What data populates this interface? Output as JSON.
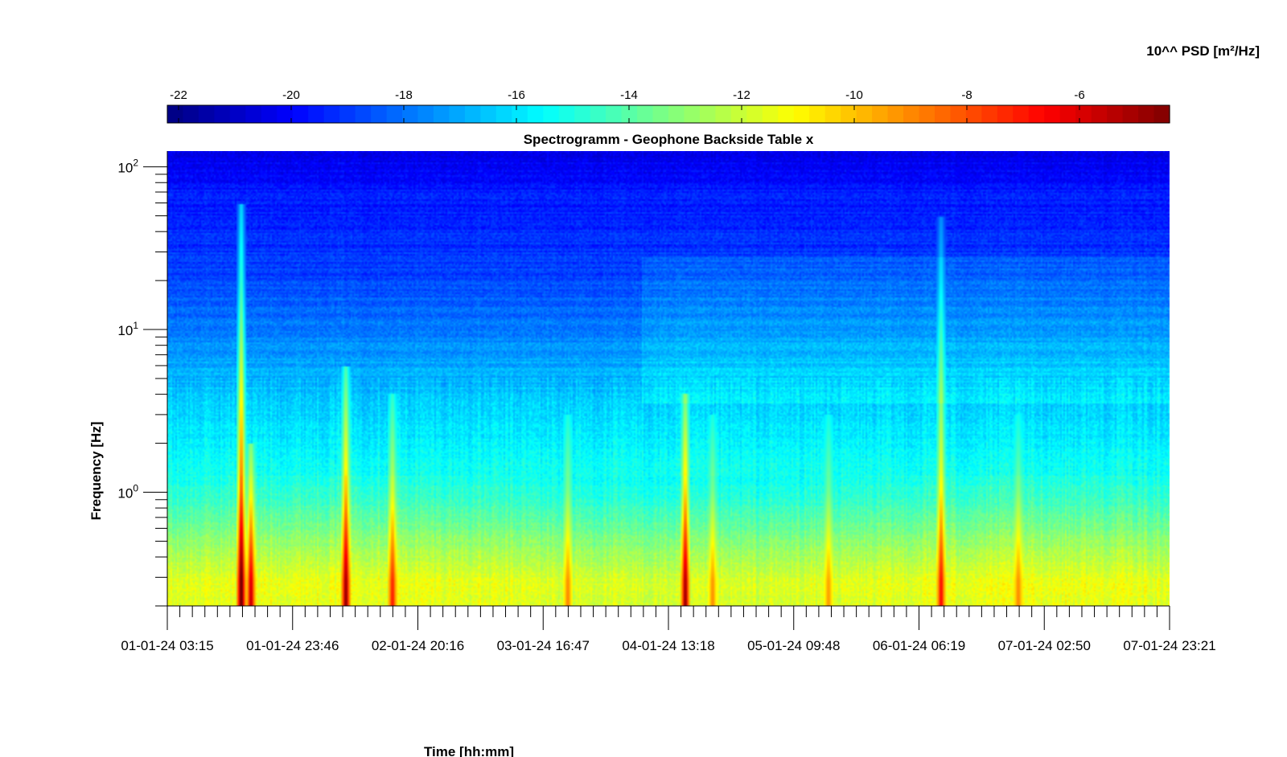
{
  "chart_data": {
    "type": "heatmap",
    "title": "Spectrogramm - Geophone Backside Table x",
    "xlabel": "Time [hh:mm]",
    "ylabel": "Frequency [Hz]",
    "x_ticks": [
      "01-01-24 03:15",
      "01-01-24 23:46",
      "02-01-24 20:16",
      "03-01-24 16:47",
      "04-01-24 13:18",
      "05-01-24 09:48",
      "06-01-24 06:19",
      "07-01-24 02:50",
      "07-01-24 23:21"
    ],
    "y_scale": "log",
    "y_ticks": [
      {
        "value": 1,
        "base": "10",
        "exp": "0"
      },
      {
        "value": 10,
        "base": "10",
        "exp": "1"
      },
      {
        "value": 100,
        "base": "10",
        "exp": "2"
      }
    ],
    "ylim": [
      0.2,
      125
    ],
    "colorbar": {
      "label": "10^^ PSD [m²/Hz]",
      "ticks": [
        "-22",
        "-20",
        "-18",
        "-16",
        "-14",
        "-12",
        "-10",
        "-8",
        "-6"
      ],
      "tick_values": [
        -22,
        -20,
        -18,
        -16,
        -14,
        -12,
        -10,
        -8,
        -6
      ],
      "range": [
        -22.2,
        -4.4
      ],
      "colormap": "jet"
    },
    "grid": false,
    "events": [
      {
        "x": 0.073,
        "intensity": 1.0,
        "top_freq": 60
      },
      {
        "x": 0.083,
        "intensity": 0.75,
        "top_freq": 2
      },
      {
        "x": 0.178,
        "intensity": 0.85,
        "top_freq": 6
      },
      {
        "x": 0.225,
        "intensity": 0.55,
        "top_freq": 4
      },
      {
        "x": 0.517,
        "intensity": 0.9,
        "top_freq": 4
      },
      {
        "x": 0.773,
        "intensity": 0.6,
        "top_freq": 50
      },
      {
        "x": 0.4,
        "intensity": 0.35,
        "top_freq": 3
      },
      {
        "x": 0.545,
        "intensity": 0.35,
        "top_freq": 3
      },
      {
        "x": 0.85,
        "intensity": 0.3,
        "top_freq": 3
      },
      {
        "x": 0.66,
        "intensity": 0.3,
        "top_freq": 3
      }
    ]
  }
}
